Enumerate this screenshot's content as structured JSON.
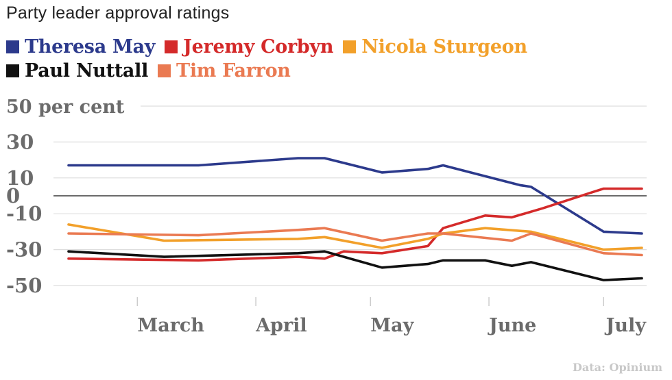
{
  "title": "Party leader approval ratings",
  "source": "Data: Opinium",
  "colors": {
    "grid": "#dddddd",
    "zero_line": "#111111",
    "axis_text": "#6b6b6b"
  },
  "chart_data": {
    "type": "line",
    "title": "Party leader approval ratings",
    "ylabel": "50 per cent",
    "xlabel": "",
    "ylim": [
      -55,
      52
    ],
    "y_ticks": [
      50,
      30,
      10,
      0,
      -10,
      -30,
      -50
    ],
    "y_tick_labels": [
      "50 per cent",
      "30",
      "10",
      "0",
      "-10",
      "-30",
      "-50"
    ],
    "grid": true,
    "legend_placement": "top",
    "x_ticks": [
      {
        "label": "March",
        "date": "2017-03-01"
      },
      {
        "label": "April",
        "date": "2017-04-01"
      },
      {
        "label": "May",
        "date": "2017-05-01"
      },
      {
        "label": "June",
        "date": "2017-06-01"
      },
      {
        "label": "July",
        "date": "2017-07-01"
      }
    ],
    "series": [
      {
        "name": "Theresa May",
        "color": "#2c3a8c",
        "points": [
          [
            "2017-02-11",
            17
          ],
          [
            "2017-03-17",
            17
          ],
          [
            "2017-04-12",
            21
          ],
          [
            "2017-04-19",
            21
          ],
          [
            "2017-05-04",
            13
          ],
          [
            "2017-05-16",
            15
          ],
          [
            "2017-05-20",
            17
          ],
          [
            "2017-06-09",
            6
          ],
          [
            "2017-06-12",
            5
          ],
          [
            "2017-07-01",
            -20
          ],
          [
            "2017-07-11",
            -21
          ]
        ]
      },
      {
        "name": "Jeremy Corbyn",
        "color": "#d42a2a",
        "points": [
          [
            "2017-02-11",
            -35
          ],
          [
            "2017-03-17",
            -36
          ],
          [
            "2017-04-12",
            -34
          ],
          [
            "2017-04-19",
            -35
          ],
          [
            "2017-04-24",
            -31
          ],
          [
            "2017-05-04",
            -32
          ],
          [
            "2017-05-16",
            -28
          ],
          [
            "2017-05-20",
            -18
          ],
          [
            "2017-05-31",
            -11
          ],
          [
            "2017-06-07",
            -12
          ],
          [
            "2017-06-15",
            -7
          ],
          [
            "2017-06-28",
            2
          ],
          [
            "2017-07-01",
            4
          ],
          [
            "2017-07-11",
            4
          ]
        ]
      },
      {
        "name": "Nicola Sturgeon",
        "color": "#f2a02a",
        "points": [
          [
            "2017-02-11",
            -16
          ],
          [
            "2017-03-08",
            -25
          ],
          [
            "2017-04-12",
            -24
          ],
          [
            "2017-04-19",
            -23
          ],
          [
            "2017-05-04",
            -29
          ],
          [
            "2017-05-16",
            -24
          ],
          [
            "2017-05-20",
            -21
          ],
          [
            "2017-05-31",
            -18
          ],
          [
            "2017-06-12",
            -20
          ],
          [
            "2017-07-01",
            -30
          ],
          [
            "2017-07-11",
            -29
          ]
        ]
      },
      {
        "name": "Paul Nuttall",
        "color": "#111111",
        "points": [
          [
            "2017-02-11",
            -31
          ],
          [
            "2017-03-08",
            -34
          ],
          [
            "2017-04-12",
            -32
          ],
          [
            "2017-04-19",
            -31
          ],
          [
            "2017-05-04",
            -40
          ],
          [
            "2017-05-16",
            -38
          ],
          [
            "2017-05-20",
            -36
          ],
          [
            "2017-05-31",
            -36
          ],
          [
            "2017-06-07",
            -39
          ],
          [
            "2017-06-12",
            -37
          ],
          [
            "2017-07-01",
            -47
          ],
          [
            "2017-07-11",
            -46
          ]
        ]
      },
      {
        "name": "Tim Farron",
        "color": "#ea7a52",
        "points": [
          [
            "2017-02-11",
            -21
          ],
          [
            "2017-03-17",
            -22
          ],
          [
            "2017-04-12",
            -19
          ],
          [
            "2017-04-19",
            -18
          ],
          [
            "2017-05-04",
            -25
          ],
          [
            "2017-05-16",
            -21
          ],
          [
            "2017-05-20",
            -21
          ],
          [
            "2017-06-07",
            -25
          ],
          [
            "2017-06-12",
            -21
          ],
          [
            "2017-07-01",
            -32
          ],
          [
            "2017-07-11",
            -33
          ]
        ]
      }
    ]
  }
}
